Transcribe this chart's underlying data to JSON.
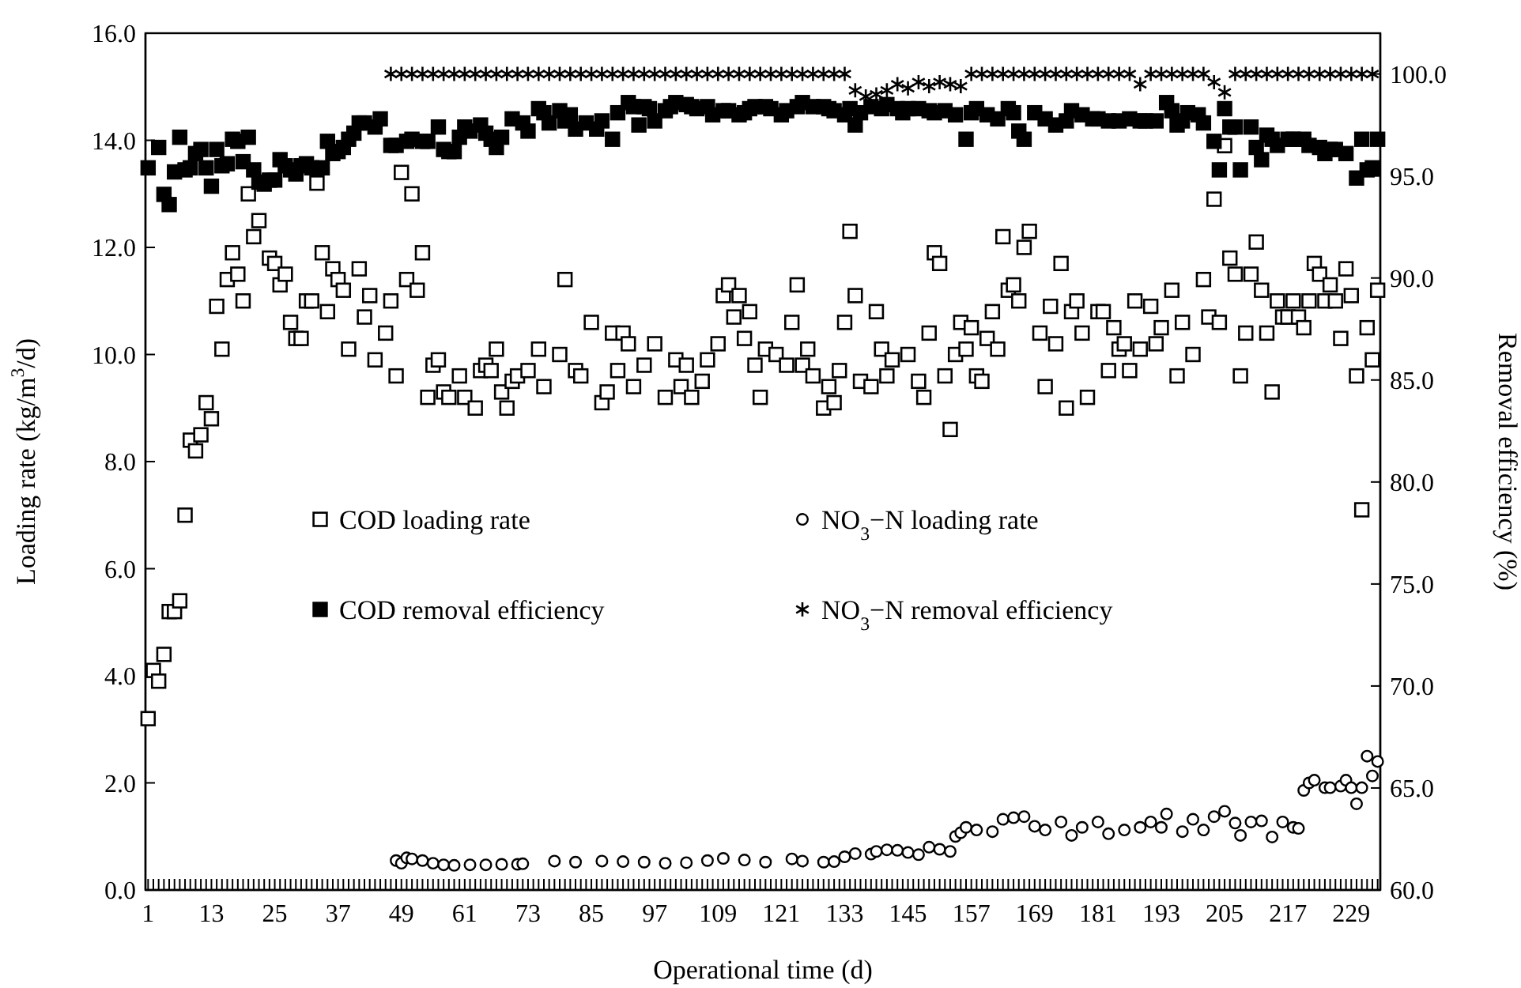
{
  "chart_data": {
    "type": "scatter",
    "xlabel": "Operational time (d)",
    "ylabel": "Loading rate (kg/m$^{3}$/d)",
    "y2label": "Removal efficiency (%)",
    "legend": "center",
    "xlim": [
      0.5,
      234.5
    ],
    "xticks": [
      1,
      {
        "value": 2,
        "label": null
      },
      {
        "value": 3,
        "label": null
      },
      {
        "value": 4,
        "label": null
      },
      {
        "value": 5,
        "label": null
      },
      {
        "value": 6,
        "label": null
      },
      {
        "value": 7,
        "label": null
      },
      {
        "value": 8,
        "label": null
      },
      {
        "value": 9,
        "label": null
      },
      {
        "value": 10,
        "label": null
      },
      {
        "value": 11,
        "label": null
      },
      {
        "value": 12,
        "label": null
      },
      13,
      {
        "value": 14,
        "label": null
      },
      {
        "value": 15,
        "label": null
      },
      {
        "value": 16,
        "label": null
      },
      {
        "value": 17,
        "label": null
      },
      {
        "value": 18,
        "label": null
      },
      {
        "value": 19,
        "label": null
      },
      {
        "value": 20,
        "label": null
      },
      {
        "value": 21,
        "label": null
      },
      {
        "value": 22,
        "label": null
      },
      {
        "value": 23,
        "label": null
      },
      {
        "value": 24,
        "label": null
      },
      25,
      {
        "value": 26,
        "label": null
      },
      {
        "value": 27,
        "label": null
      },
      {
        "value": 28,
        "label": null
      },
      {
        "value": 29,
        "label": null
      },
      {
        "value": 30,
        "label": null
      },
      {
        "value": 31,
        "label": null
      },
      {
        "value": 32,
        "label": null
      },
      {
        "value": 33,
        "label": null
      },
      {
        "value": 34,
        "label": null
      },
      {
        "value": 35,
        "label": null
      },
      {
        "value": 36,
        "label": null
      },
      37,
      {
        "value": 38,
        "label": null
      },
      {
        "value": 39,
        "label": null
      },
      {
        "value": 40,
        "label": null
      },
      {
        "value": 41,
        "label": null
      },
      {
        "value": 42,
        "label": null
      },
      {
        "value": 43,
        "label": null
      },
      {
        "value": 44,
        "label": null
      },
      {
        "value": 45,
        "label": null
      },
      {
        "value": 46,
        "label": null
      },
      {
        "value": 47,
        "label": null
      },
      {
        "value": 48,
        "label": null
      },
      49,
      {
        "value": 50,
        "label": null
      },
      {
        "value": 51,
        "label": null
      },
      {
        "value": 52,
        "label": null
      },
      {
        "value": 53,
        "label": null
      },
      {
        "value": 54,
        "label": null
      },
      {
        "value": 55,
        "label": null
      },
      {
        "value": 56,
        "label": null
      },
      {
        "value": 57,
        "label": null
      },
      {
        "value": 58,
        "label": null
      },
      {
        "value": 59,
        "label": null
      },
      {
        "value": 60,
        "label": null
      },
      61,
      {
        "value": 62,
        "label": null
      },
      {
        "value": 63,
        "label": null
      },
      {
        "value": 64,
        "label": null
      },
      {
        "value": 65,
        "label": null
      },
      {
        "value": 66,
        "label": null
      },
      {
        "value": 67,
        "label": null
      },
      {
        "value": 68,
        "label": null
      },
      {
        "value": 69,
        "label": null
      },
      {
        "value": 70,
        "label": null
      },
      {
        "value": 71,
        "label": null
      },
      {
        "value": 72,
        "label": null
      },
      73,
      {
        "value": 74,
        "label": null
      },
      {
        "value": 75,
        "label": null
      },
      {
        "value": 76,
        "label": null
      },
      {
        "value": 77,
        "label": null
      },
      {
        "value": 78,
        "label": null
      },
      {
        "value": 79,
        "label": null
      },
      {
        "value": 80,
        "label": null
      },
      {
        "value": 81,
        "label": null
      },
      {
        "value": 82,
        "label": null
      },
      {
        "value": 83,
        "label": null
      },
      {
        "value": 84,
        "label": null
      },
      85,
      {
        "value": 86,
        "label": null
      },
      {
        "value": 87,
        "label": null
      },
      {
        "value": 88,
        "label": null
      },
      {
        "value": 89,
        "label": null
      },
      {
        "value": 90,
        "label": null
      },
      {
        "value": 91,
        "label": null
      },
      {
        "value": 92,
        "label": null
      },
      {
        "value": 93,
        "label": null
      },
      {
        "value": 94,
        "label": null
      },
      {
        "value": 95,
        "label": null
      },
      {
        "value": 96,
        "label": null
      },
      97,
      {
        "value": 98,
        "label": null
      },
      {
        "value": 99,
        "label": null
      },
      {
        "value": 100,
        "label": null
      },
      {
        "value": 101,
        "label": null
      },
      {
        "value": 102,
        "label": null
      },
      {
        "value": 103,
        "label": null
      },
      {
        "value": 104,
        "label": null
      },
      {
        "value": 105,
        "label": null
      },
      {
        "value": 106,
        "label": null
      },
      {
        "value": 107,
        "label": null
      },
      {
        "value": 108,
        "label": null
      },
      109,
      {
        "value": 110,
        "label": null
      },
      {
        "value": 111,
        "label": null
      },
      {
        "value": 112,
        "label": null
      },
      {
        "value": 113,
        "label": null
      },
      {
        "value": 114,
        "label": null
      },
      {
        "value": 115,
        "label": null
      },
      {
        "value": 116,
        "label": null
      },
      {
        "value": 117,
        "label": null
      },
      {
        "value": 118,
        "label": null
      },
      {
        "value": 119,
        "label": null
      },
      {
        "value": 120,
        "label": null
      },
      121,
      {
        "value": 122,
        "label": null
      },
      {
        "value": 123,
        "label": null
      },
      {
        "value": 124,
        "label": null
      },
      {
        "value": 125,
        "label": null
      },
      {
        "value": 126,
        "label": null
      },
      {
        "value": 127,
        "label": null
      },
      {
        "value": 128,
        "label": null
      },
      {
        "value": 129,
        "label": null
      },
      {
        "value": 130,
        "label": null
      },
      {
        "value": 131,
        "label": null
      },
      {
        "value": 132,
        "label": null
      },
      133,
      {
        "value": 134,
        "label": null
      },
      {
        "value": 135,
        "label": null
      },
      {
        "value": 136,
        "label": null
      },
      {
        "value": 137,
        "label": null
      },
      {
        "value": 138,
        "label": null
      },
      {
        "value": 139,
        "label": null
      },
      {
        "value": 140,
        "label": null
      },
      {
        "value": 141,
        "label": null
      },
      {
        "value": 142,
        "label": null
      },
      {
        "value": 143,
        "label": null
      },
      {
        "value": 144,
        "label": null
      },
      145,
      {
        "value": 146,
        "label": null
      },
      {
        "value": 147,
        "label": null
      },
      {
        "value": 148,
        "label": null
      },
      {
        "value": 149,
        "label": null
      },
      {
        "value": 150,
        "label": null
      },
      {
        "value": 151,
        "label": null
      },
      {
        "value": 152,
        "label": null
      },
      {
        "value": 153,
        "label": null
      },
      {
        "value": 154,
        "label": null
      },
      {
        "value": 155,
        "label": null
      },
      {
        "value": 156,
        "label": null
      },
      157,
      {
        "value": 158,
        "label": null
      },
      {
        "value": 159,
        "label": null
      },
      {
        "value": 160,
        "label": null
      },
      {
        "value": 161,
        "label": null
      },
      {
        "value": 162,
        "label": null
      },
      {
        "value": 163,
        "label": null
      },
      {
        "value": 164,
        "label": null
      },
      {
        "value": 165,
        "label": null
      },
      {
        "value": 166,
        "label": null
      },
      {
        "value": 167,
        "label": null
      },
      {
        "value": 168,
        "label": null
      },
      169,
      {
        "value": 170,
        "label": null
      },
      {
        "value": 171,
        "label": null
      },
      {
        "value": 172,
        "label": null
      },
      {
        "value": 173,
        "label": null
      },
      {
        "value": 174,
        "label": null
      },
      {
        "value": 175,
        "label": null
      },
      {
        "value": 176,
        "label": null
      },
      {
        "value": 177,
        "label": null
      },
      {
        "value": 178,
        "label": null
      },
      {
        "value": 179,
        "label": null
      },
      {
        "value": 180,
        "label": null
      },
      181,
      {
        "value": 182,
        "label": null
      },
      {
        "value": 183,
        "label": null
      },
      {
        "value": 184,
        "label": null
      },
      {
        "value": 185,
        "label": null
      },
      {
        "value": 186,
        "label": null
      },
      {
        "value": 187,
        "label": null
      },
      {
        "value": 188,
        "label": null
      },
      {
        "value": 189,
        "label": null
      },
      {
        "value": 190,
        "label": null
      },
      {
        "value": 191,
        "label": null
      },
      {
        "value": 192,
        "label": null
      },
      193,
      {
        "value": 194,
        "label": null
      },
      {
        "value": 195,
        "label": null
      },
      {
        "value": 196,
        "label": null
      },
      {
        "value": 197,
        "label": null
      },
      {
        "value": 198,
        "label": null
      },
      {
        "value": 199,
        "label": null
      },
      {
        "value": 200,
        "label": null
      },
      {
        "value": 201,
        "label": null
      },
      {
        "value": 202,
        "label": null
      },
      {
        "value": 203,
        "label": null
      },
      {
        "value": 204,
        "label": null
      },
      205,
      {
        "value": 206,
        "label": null
      },
      {
        "value": 207,
        "label": null
      },
      {
        "value": 208,
        "label": null
      },
      {
        "value": 209,
        "label": null
      },
      {
        "value": 210,
        "label": null
      },
      {
        "value": 211,
        "label": null
      },
      {
        "value": 212,
        "label": null
      },
      {
        "value": 213,
        "label": null
      },
      {
        "value": 214,
        "label": null
      },
      {
        "value": 215,
        "label": null
      },
      {
        "value": 216,
        "label": null
      },
      217,
      {
        "value": 218,
        "label": null
      },
      {
        "value": 219,
        "label": null
      },
      {
        "value": 220,
        "label": null
      },
      {
        "value": 221,
        "label": null
      },
      {
        "value": 222,
        "label": null
      },
      {
        "value": 223,
        "label": null
      },
      {
        "value": 224,
        "label": null
      },
      {
        "value": 225,
        "label": null
      },
      {
        "value": 226,
        "label": null
      },
      {
        "value": 227,
        "label": null
      },
      {
        "value": 228,
        "label": null
      },
      229,
      {
        "value": 230,
        "label": null
      },
      {
        "value": 231,
        "label": null
      },
      {
        "value": 232,
        "label": null
      },
      {
        "value": 233,
        "label": null
      },
      {
        "value": 234,
        "label": null
      }
    ],
    "ylim": [
      0,
      16
    ],
    "yticks": [
      {
        "value": 0,
        "label": "0.0"
      },
      {
        "value": 2,
        "label": "2.0"
      },
      {
        "value": 4,
        "label": "4.0"
      },
      {
        "value": 6,
        "label": "6.0"
      },
      {
        "value": 8,
        "label": "8.0"
      },
      {
        "value": 10,
        "label": "10.0"
      },
      {
        "value": 12,
        "label": "12.0"
      },
      {
        "value": 14,
        "label": "14.0"
      },
      {
        "value": 16,
        "label": "16.0"
      }
    ],
    "y2lim": [
      60,
      102
    ],
    "y2ticks": [
      {
        "value": 60,
        "label": "60.0"
      },
      {
        "value": 65,
        "label": "65.0"
      },
      {
        "value": 70,
        "label": "70.0"
      },
      {
        "value": 75,
        "label": "75.0"
      },
      {
        "value": 80,
        "label": "80.0"
      },
      {
        "value": 85,
        "label": "85.0"
      },
      {
        "value": 90,
        "label": "90.0"
      },
      {
        "value": 95,
        "label": "95.0"
      },
      {
        "value": 100,
        "label": "100.0"
      }
    ],
    "series": [
      {
        "name": "COD loading rate",
        "color": "#000000",
        "marker": "square",
        "axis": "y",
        "x": [
          1,
          2,
          3,
          4,
          5,
          6,
          7,
          8,
          9,
          10,
          11,
          12,
          13,
          14,
          15,
          16,
          17,
          18,
          19,
          20,
          21,
          22,
          24,
          25,
          26,
          27,
          28,
          29,
          30,
          31,
          32,
          33,
          34,
          35,
          36,
          37,
          38,
          39,
          41,
          42,
          43,
          44,
          46,
          47,
          48,
          49,
          50,
          51,
          52,
          53,
          54,
          55,
          56,
          57,
          58,
          60,
          61,
          63,
          64,
          65,
          66,
          67,
          68,
          69,
          70,
          71,
          73,
          75,
          76,
          79,
          80,
          82,
          83,
          85,
          87,
          88,
          89,
          90,
          91,
          92,
          93,
          95,
          97,
          99,
          101,
          102,
          103,
          104,
          106,
          107,
          109,
          110,
          111,
          112,
          113,
          114,
          115,
          116,
          117,
          118,
          120,
          122,
          123,
          124,
          125,
          126,
          127,
          129,
          130,
          131,
          132,
          133,
          134,
          135,
          136,
          138,
          139,
          140,
          141,
          142,
          145,
          147,
          148,
          149,
          150,
          151,
          152,
          153,
          154,
          155,
          156,
          157,
          158,
          159,
          160,
          161,
          162,
          163,
          164,
          165,
          166,
          167,
          168,
          170,
          171,
          172,
          173,
          174,
          175,
          176,
          177,
          178,
          179,
          181,
          182,
          183,
          184,
          185,
          186,
          187,
          188,
          189,
          191,
          192,
          193,
          195,
          196,
          197,
          199,
          201,
          202,
          203,
          204,
          205,
          206,
          207,
          208,
          209,
          210,
          211,
          212,
          213,
          214,
          215,
          216,
          217,
          218,
          219,
          220,
          221,
          222,
          223,
          224,
          225,
          226,
          227,
          228,
          229,
          230,
          231,
          232,
          233,
          234
        ],
        "values": [
          3.2,
          4.1,
          3.9,
          4.4,
          5.2,
          5.2,
          5.4,
          7.0,
          8.4,
          8.2,
          8.5,
          9.1,
          8.8,
          10.9,
          10.1,
          11.4,
          11.9,
          11.5,
          11.0,
          13.0,
          12.2,
          12.5,
          11.8,
          11.7,
          11.3,
          11.5,
          10.6,
          10.3,
          10.3,
          11.0,
          11.0,
          13.2,
          11.9,
          10.8,
          11.6,
          11.4,
          11.2,
          10.1,
          11.6,
          10.7,
          11.1,
          9.9,
          10.4,
          11.0,
          9.6,
          13.4,
          11.4,
          13.0,
          11.2,
          11.9,
          9.2,
          9.8,
          9.9,
          9.3,
          9.2,
          9.6,
          9.2,
          9.0,
          9.7,
          9.8,
          9.7,
          10.1,
          9.3,
          9.0,
          9.5,
          9.6,
          9.7,
          10.1,
          9.4,
          10.0,
          11.4,
          9.7,
          9.6,
          10.6,
          9.1,
          9.3,
          10.4,
          9.7,
          10.4,
          10.2,
          9.4,
          9.8,
          10.2,
          9.2,
          9.9,
          9.4,
          9.8,
          9.2,
          9.5,
          9.9,
          10.2,
          11.1,
          11.3,
          10.7,
          11.1,
          10.3,
          10.8,
          9.8,
          9.2,
          10.1,
          10.0,
          9.8,
          10.6,
          11.3,
          9.8,
          10.1,
          9.6,
          9.0,
          9.4,
          9.1,
          9.7,
          10.6,
          12.3,
          11.1,
          9.5,
          9.4,
          10.8,
          10.1,
          9.6,
          9.9,
          10.0,
          9.5,
          9.2,
          10.4,
          11.9,
          11.7,
          9.6,
          8.6,
          10.0,
          10.6,
          10.1,
          10.5,
          9.6,
          9.5,
          10.3,
          10.8,
          10.1,
          12.2,
          11.2,
          11.3,
          11.0,
          12.0,
          12.3,
          10.4,
          9.4,
          10.9,
          10.2,
          11.7,
          9.0,
          10.8,
          11.0,
          10.4,
          9.2,
          10.8,
          10.8,
          9.7,
          10.5,
          10.1,
          10.2,
          9.7,
          11.0,
          10.1,
          10.9,
          10.2,
          10.5,
          11.2,
          9.6,
          10.6,
          10.0,
          11.4,
          10.7,
          12.9,
          10.6,
          13.9,
          11.8,
          11.5,
          9.6,
          10.4,
          11.5,
          12.1,
          11.2,
          10.4,
          9.3,
          11.0,
          10.7,
          10.7,
          11.0,
          10.7,
          10.5,
          11.0,
          11.7,
          11.5,
          11.0,
          11.3,
          11.0,
          10.3,
          11.6,
          11.1,
          9.6,
          7.1,
          10.5,
          9.9,
          11.2
        ]
      },
      {
        "name": "NO$_{3}$−N loading rate",
        "color": "#000000",
        "marker": "circle",
        "axis": "y",
        "x": [
          48,
          49,
          50,
          51,
          53,
          55,
          57,
          59,
          62,
          65,
          68,
          71,
          72,
          78,
          82,
          87,
          91,
          95,
          99,
          103,
          107,
          110,
          114,
          118,
          123,
          125,
          129,
          131,
          133,
          135,
          138,
          139,
          141,
          143,
          145,
          147,
          149,
          151,
          153,
          154,
          155,
          156,
          158,
          161,
          163,
          165,
          167,
          169,
          171,
          174,
          176,
          178,
          181,
          183,
          186,
          189,
          191,
          193,
          194,
          197,
          199,
          201,
          203,
          205,
          207,
          208,
          210,
          212,
          214,
          216,
          218,
          219,
          220,
          221,
          222,
          224,
          225,
          227,
          228,
          229,
          230,
          231,
          232,
          233,
          234
        ],
        "values": [
          0.55,
          0.5,
          0.6,
          0.58,
          0.55,
          0.5,
          0.47,
          0.46,
          0.47,
          0.47,
          0.48,
          0.48,
          0.49,
          0.54,
          0.52,
          0.54,
          0.53,
          0.52,
          0.5,
          0.51,
          0.55,
          0.59,
          0.56,
          0.52,
          0.58,
          0.54,
          0.52,
          0.53,
          0.62,
          0.68,
          0.67,
          0.72,
          0.75,
          0.74,
          0.7,
          0.66,
          0.8,
          0.76,
          0.72,
          1.0,
          1.07,
          1.17,
          1.12,
          1.09,
          1.32,
          1.35,
          1.37,
          1.19,
          1.12,
          1.27,
          1.02,
          1.17,
          1.27,
          1.05,
          1.12,
          1.17,
          1.27,
          1.17,
          1.42,
          1.09,
          1.32,
          1.12,
          1.37,
          1.47,
          1.25,
          1.02,
          1.27,
          1.29,
          0.99,
          1.27,
          1.17,
          1.15,
          1.86,
          2.0,
          2.05,
          1.91,
          1.91,
          1.94,
          2.05,
          1.91,
          1.61,
          1.91,
          2.5,
          2.13,
          2.4
        ]
      },
      {
        "name": "COD removal efficiency",
        "color": "#000000",
        "marker": "square",
        "axis": "y2",
        "x": [
          1,
          3,
          4,
          5,
          6,
          7,
          8,
          9,
          10,
          11,
          12,
          13,
          14,
          15,
          16,
          17,
          18,
          19,
          20,
          21,
          22,
          23,
          24,
          25,
          26,
          27,
          28,
          29,
          30,
          31,
          32,
          34,
          35,
          36,
          37,
          38,
          39,
          40,
          41,
          42,
          44,
          45,
          47,
          48,
          50,
          51,
          53,
          54,
          56,
          57,
          58,
          59,
          60,
          61,
          62,
          64,
          65,
          66,
          67,
          68,
          70,
          72,
          73,
          75,
          76,
          77,
          79,
          80,
          81,
          82,
          84,
          86,
          87,
          89,
          90,
          92,
          93,
          94,
          95,
          96,
          97,
          99,
          100,
          101,
          103,
          104,
          105,
          107,
          108,
          110,
          111,
          113,
          114,
          115,
          116,
          118,
          119,
          121,
          122,
          124,
          125,
          127,
          129,
          130,
          131,
          133,
          134,
          135,
          136,
          138,
          140,
          141,
          143,
          144,
          145,
          147,
          149,
          150,
          152,
          154,
          156,
          157,
          158,
          160,
          162,
          164,
          165,
          166,
          167,
          169,
          171,
          173,
          175,
          176,
          178,
          180,
          181,
          183,
          185,
          187,
          189,
          190,
          192,
          194,
          195,
          196,
          197,
          198,
          200,
          201,
          203,
          204,
          205,
          206,
          207,
          208,
          210,
          211,
          212,
          213,
          214,
          215,
          217,
          218,
          220,
          221,
          223,
          224,
          225,
          226,
          228,
          230,
          231,
          232,
          233,
          234
        ],
        "values": [
          95.4,
          96.4,
          94.1,
          93.6,
          95.2,
          96.9,
          95.3,
          95.4,
          96.1,
          96.3,
          95.4,
          94.5,
          96.3,
          95.5,
          95.6,
          96.8,
          96.7,
          95.7,
          96.9,
          95.3,
          94.7,
          94.6,
          94.8,
          94.8,
          95.8,
          95.5,
          95.3,
          95.1,
          95.5,
          95.6,
          95.4,
          95.4,
          96.7,
          96.1,
          96.2,
          96.4,
          96.8,
          97.1,
          97.6,
          97.6,
          97.4,
          97.8,
          96.5,
          96.5,
          96.7,
          96.8,
          96.7,
          96.7,
          97.4,
          96.3,
          96.2,
          96.2,
          96.9,
          97.4,
          97.2,
          97.5,
          97.1,
          96.8,
          96.4,
          96.9,
          97.8,
          97.6,
          97.2,
          98.3,
          98.1,
          97.6,
          98.2,
          97.7,
          98.0,
          97.3,
          97.6,
          97.3,
          97.7,
          96.8,
          98.1,
          98.6,
          98.4,
          97.5,
          98.4,
          98.3,
          97.7,
          98.2,
          98.4,
          98.6,
          98.5,
          98.4,
          98.3,
          98.4,
          98.0,
          98.2,
          98.2,
          98.0,
          98.1,
          98.3,
          98.4,
          98.4,
          98.3,
          98.0,
          98.2,
          98.4,
          98.6,
          98.4,
          98.4,
          98.3,
          98.2,
          98.0,
          98.3,
          97.5,
          98.1,
          98.4,
          98.3,
          98.5,
          98.3,
          98.1,
          98.3,
          98.3,
          98.2,
          98.1,
          98.2,
          98.0,
          96.8,
          98.1,
          98.3,
          98.0,
          97.8,
          98.3,
          98.1,
          97.2,
          96.8,
          98.1,
          97.8,
          97.5,
          97.7,
          98.2,
          98.0,
          97.8,
          97.8,
          97.7,
          97.7,
          97.8,
          97.7,
          97.7,
          97.7,
          98.6,
          98.2,
          97.5,
          97.7,
          98.1,
          98.0,
          97.6,
          96.7,
          95.3,
          98.3,
          97.4,
          97.4,
          95.3,
          97.4,
          96.4,
          95.8,
          97.0,
          96.8,
          96.5,
          96.8,
          96.8,
          96.8,
          96.5,
          96.4,
          96.1,
          96.3,
          96.3,
          96.1,
          94.9,
          96.8,
          95.3,
          95.4,
          96.8
        ]
      },
      {
        "name": "NO$_{3}$−N removal efficiency",
        "color": "#000000",
        "marker": "cross",
        "axis": "y2",
        "x": [
          47,
          49,
          51,
          53,
          55,
          57,
          59,
          61,
          63,
          65,
          67,
          69,
          71,
          73,
          75,
          77,
          79,
          81,
          83,
          85,
          87,
          89,
          91,
          93,
          95,
          97,
          99,
          101,
          103,
          105,
          107,
          109,
          111,
          113,
          115,
          117,
          119,
          121,
          123,
          125,
          127,
          129,
          131,
          133,
          135,
          137,
          139,
          141,
          143,
          145,
          147,
          149,
          151,
          153,
          155,
          157,
          159,
          161,
          163,
          165,
          167,
          169,
          171,
          173,
          175,
          177,
          179,
          181,
          183,
          185,
          187,
          189,
          191,
          193,
          195,
          197,
          199,
          201,
          203,
          205,
          207,
          209,
          211,
          213,
          215,
          217,
          219,
          221,
          223,
          225,
          227,
          229,
          231,
          233
        ],
        "values": [
          100,
          100,
          100,
          100,
          100,
          100,
          100,
          100,
          100,
          100,
          100,
          100,
          100,
          100,
          100,
          100,
          100,
          100,
          100,
          100,
          100,
          100,
          100,
          100,
          100,
          100,
          100,
          100,
          100,
          100,
          100,
          100,
          100,
          100,
          100,
          100,
          100,
          100,
          100,
          100,
          100,
          100,
          100,
          100,
          99.2,
          98.9,
          99.0,
          99.2,
          99.5,
          99.3,
          99.6,
          99.4,
          99.6,
          99.5,
          99.4,
          100,
          100,
          100,
          100,
          100,
          100,
          100,
          100,
          100,
          100,
          100,
          100,
          100,
          100,
          100,
          100,
          99.5,
          100,
          100,
          100,
          100,
          100,
          100,
          99.6,
          99.1,
          100,
          100,
          100,
          100,
          100,
          100,
          100,
          100,
          100,
          100,
          100,
          100,
          100,
          100
        ]
      }
    ]
  }
}
